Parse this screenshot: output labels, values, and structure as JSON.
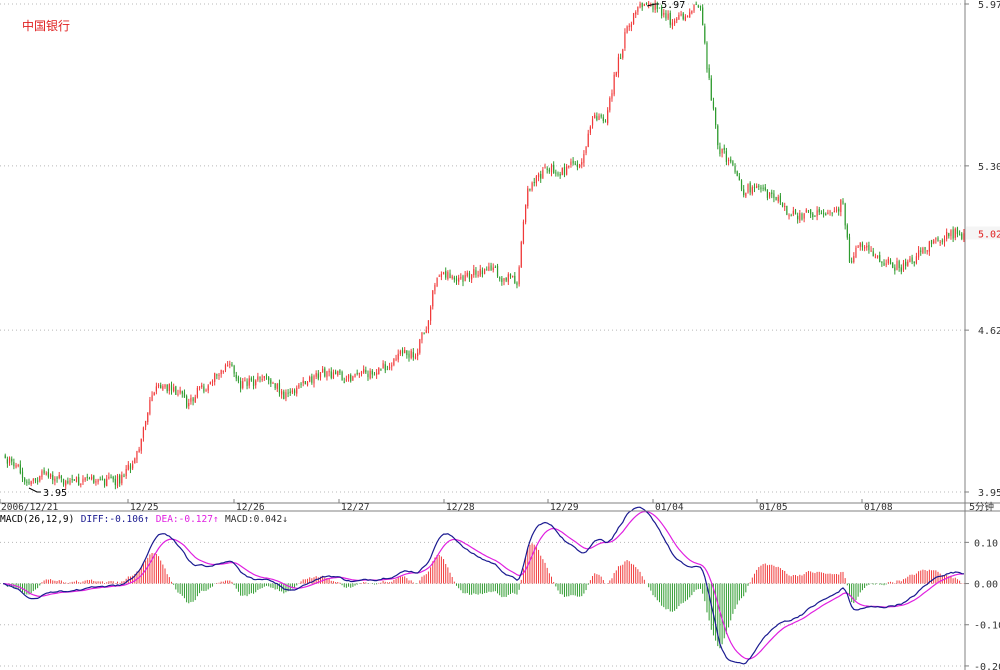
{
  "colors": {
    "up": "#f03a3a",
    "down": "#2f9b2f",
    "grid": "#b8b8b8",
    "axis": "#808080",
    "diff": "#1a1a90",
    "dea": "#e020e0",
    "last_price": "#e02020",
    "title": "#e02020"
  },
  "chart_data": [
    {
      "type": "candlestick",
      "title": "中国银行",
      "y_ticks": [
        "5.97",
        "5.30",
        "4.62",
        "3.95"
      ],
      "ylim": [
        3.95,
        5.97
      ],
      "x_tick_labels": [
        "2006/12/21",
        "12/25",
        "12/26",
        "12/27",
        "12/28",
        "12/29",
        "01/04",
        "01/05",
        "01/08"
      ],
      "annotations": {
        "high_label": "5.97",
        "low_label": "3.95"
      },
      "last_price_label": "5.02",
      "period_label": "5分钟",
      "grid": true,
      "close_path": [
        [
          0,
          4.09
        ],
        [
          7,
          4.06
        ],
        [
          12,
          3.97
        ],
        [
          18,
          4.04
        ],
        [
          25,
          4.0
        ],
        [
          40,
          3.99
        ],
        [
          55,
          4.0
        ],
        [
          62,
          4.1
        ],
        [
          67,
          4.3
        ],
        [
          72,
          4.4
        ],
        [
          80,
          4.37
        ],
        [
          85,
          4.32
        ],
        [
          92,
          4.38
        ],
        [
          98,
          4.42
        ],
        [
          105,
          4.5
        ],
        [
          110,
          4.4
        ],
        [
          115,
          4.4
        ],
        [
          122,
          4.42
        ],
        [
          130,
          4.35
        ],
        [
          140,
          4.41
        ],
        [
          150,
          4.45
        ],
        [
          160,
          4.42
        ],
        [
          170,
          4.45
        ],
        [
          178,
          4.48
        ],
        [
          186,
          4.53
        ],
        [
          191,
          4.52
        ],
        [
          196,
          4.64
        ],
        [
          201,
          4.85
        ],
        [
          206,
          4.84
        ],
        [
          215,
          4.84
        ],
        [
          226,
          4.88
        ],
        [
          231,
          4.84
        ],
        [
          238,
          4.82
        ],
        [
          243,
          5.2
        ],
        [
          250,
          5.28
        ],
        [
          260,
          5.28
        ],
        [
          268,
          5.33
        ],
        [
          273,
          5.5
        ],
        [
          277,
          5.5
        ],
        [
          279,
          5.5
        ],
        [
          284,
          5.7
        ],
        [
          289,
          5.87
        ],
        [
          295,
          5.95
        ],
        [
          302,
          5.97
        ],
        [
          310,
          5.89
        ],
        [
          318,
          5.93
        ],
        [
          323,
          5.97
        ],
        [
          326,
          5.72
        ],
        [
          331,
          5.38
        ],
        [
          338,
          5.3
        ],
        [
          343,
          5.2
        ],
        [
          350,
          5.21
        ],
        [
          357,
          5.17
        ],
        [
          365,
          5.1
        ],
        [
          372,
          5.1
        ],
        [
          380,
          5.1
        ],
        [
          384,
          5.1
        ],
        [
          389,
          5.15
        ],
        [
          392,
          4.9
        ],
        [
          397,
          4.98
        ],
        [
          404,
          4.92
        ],
        [
          412,
          4.89
        ],
        [
          418,
          4.88
        ],
        [
          426,
          4.95
        ],
        [
          433,
          5.0
        ],
        [
          440,
          5.02
        ]
      ]
    },
    {
      "type": "macd",
      "title": "MACD(26,12,9)",
      "legend": [
        {
          "name": "DIFF",
          "value": "-0.106",
          "arrow": "↑"
        },
        {
          "name": "DEA",
          "value": "-0.127",
          "arrow": "↑"
        },
        {
          "name": "MACD",
          "value": "0.042",
          "arrow": "↓"
        }
      ],
      "y_ticks": [
        "0.10",
        "0.00",
        "-0.10",
        "-0.20"
      ],
      "ylim": [
        -0.205,
        0.13
      ],
      "grid": true
    }
  ]
}
